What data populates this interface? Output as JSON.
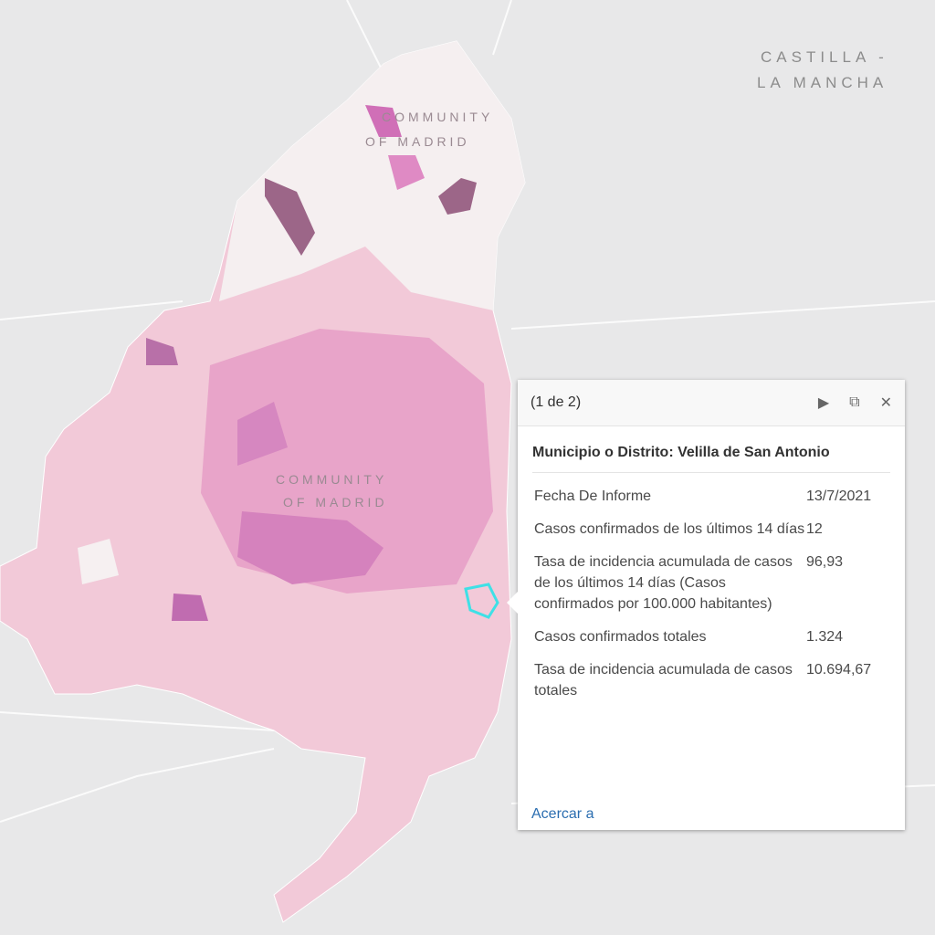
{
  "map": {
    "labels": [
      "CASTILLA -",
      "LA MANCHA",
      "COMMUNITY",
      "OF MADRID",
      "COMMUNITY",
      "OF MADRID"
    ]
  },
  "popup": {
    "pager": "(1 de 2)",
    "title": "Municipio o Distrito: Velilla de San Antonio",
    "fields": [
      {
        "label": "Fecha De Informe",
        "value": "13/7/2021"
      },
      {
        "label": "Casos confirmados de los últimos 14 días",
        "value": "12"
      },
      {
        "label": "Tasa de incidencia acumulada de casos de los últimos 14 días (Casos confirmados por 100.000 habitantes)",
        "value": "96,93"
      },
      {
        "label": "Casos confirmados totales",
        "value": "1.324"
      },
      {
        "label": "Tasa de incidencia acumulada de casos totales",
        "value": "10.694,67"
      }
    ],
    "link": "Acercar a"
  }
}
